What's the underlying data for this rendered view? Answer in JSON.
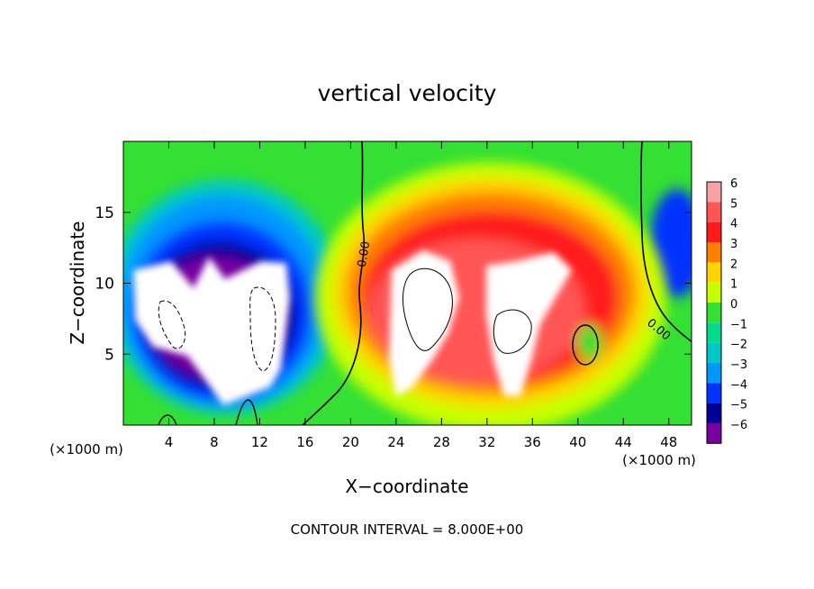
{
  "chart_data": {
    "type": "heatmap",
    "title": "vertical velocity",
    "xlabel": "X−coordinate",
    "ylabel": "Z−coordinate",
    "x_unit_label": "(×1000 m)",
    "y_unit_label": "(×1000 m)",
    "xlim": [
      0,
      50
    ],
    "ylim": [
      0,
      20
    ],
    "x_ticks": [
      4,
      8,
      12,
      16,
      20,
      24,
      28,
      32,
      36,
      40,
      44,
      48
    ],
    "x_tick_labels": [
      "4",
      "8",
      "12",
      "16",
      "20",
      "24",
      "28",
      "32",
      "36",
      "40",
      "44",
      "48"
    ],
    "y_ticks": [
      5,
      10,
      15
    ],
    "y_tick_labels": [
      "5",
      "10",
      "15"
    ],
    "colorbar": {
      "levels": [
        6,
        5,
        4,
        3,
        2,
        1,
        0,
        -1,
        -2,
        -3,
        -4,
        -5,
        -6
      ],
      "labels": [
        "6",
        "5",
        "4",
        "3",
        "2",
        "1",
        "0",
        "−1",
        "−2",
        "−3",
        "−4",
        "−5",
        "−6"
      ],
      "colors": [
        "#f7a3a3",
        "#ff5555",
        "#ff1a1a",
        "#ff7f00",
        "#ffd400",
        "#c8ff00",
        "#33e033",
        "#00dc8c",
        "#00c8c8",
        "#0096ff",
        "#0032ff",
        "#000096",
        "#7800a0"
      ]
    },
    "background_color": "#33e033",
    "contour_labels": [
      {
        "text": "0.00",
        "x": 21.3,
        "y": 12.1
      },
      {
        "text": "0.00",
        "x": 46.4,
        "y": 6.5
      }
    ],
    "footer": "CONTOUR INTERVAL = 8.000E+00"
  }
}
